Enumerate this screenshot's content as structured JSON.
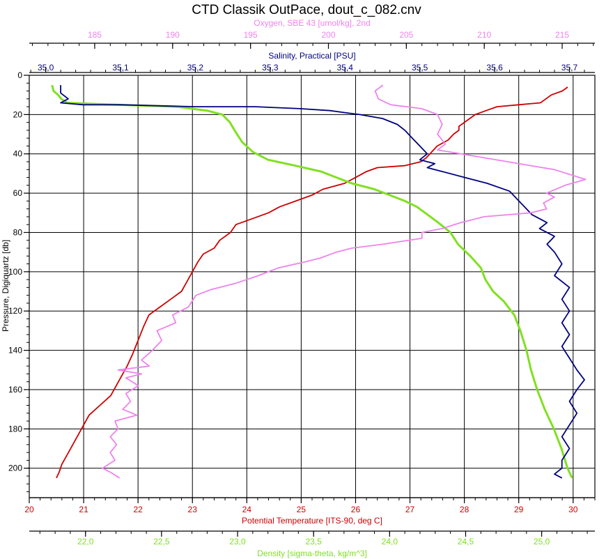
{
  "chart_data": {
    "type": "line",
    "title": "CTD Classik OutPace, dout_c_082.cnv",
    "grid": true,
    "y_axis": {
      "label": "Pressure, Digiquartz [db]",
      "range": [
        0,
        215
      ],
      "ticks": [
        "0",
        "20",
        "40",
        "60",
        "80",
        "100",
        "120",
        "140",
        "160",
        "180",
        "200"
      ],
      "inverted": true
    },
    "axes": [
      {
        "key": "oxygen",
        "label": "Oxygen, SBE 43 [umol/kg], 2nd",
        "color": "#ee82ee",
        "range": [
          180.8,
          217.1
        ],
        "ticks": [
          "185",
          "190",
          "195",
          "200",
          "205",
          "210",
          "215"
        ]
      },
      {
        "key": "salinity",
        "label": "Salinity, Practical [PSU]",
        "color": "#000080",
        "range": [
          34.978,
          35.734
        ],
        "ticks": [
          "35,0",
          "35,1",
          "35,2",
          "35,3",
          "35,4",
          "35,5",
          "35,6",
          "35,7"
        ]
      },
      {
        "key": "temperature",
        "label": "Potential Temperature [ITS-90, deg C]",
        "color": "#cc0000",
        "range": [
          20,
          30.4
        ],
        "ticks": [
          "20",
          "21",
          "22",
          "23",
          "24",
          "25",
          "26",
          "27",
          "28",
          "29",
          "30"
        ]
      },
      {
        "key": "density",
        "label": "Density [sigma-theta, kg/m^3]",
        "color": "#80e020",
        "range": [
          21.63,
          25.35
        ],
        "ticks": [
          "22,0",
          "22,5",
          "23,0",
          "23,5",
          "24,0",
          "24,5",
          "25,0"
        ]
      }
    ],
    "series": [
      {
        "axis": "temperature",
        "color": "#cc0000",
        "points": [
          [
            29.9,
            6
          ],
          [
            29.8,
            8
          ],
          [
            29.6,
            10
          ],
          [
            29.5,
            12
          ],
          [
            29.4,
            14
          ],
          [
            29.0,
            15
          ],
          [
            28.6,
            16
          ],
          [
            28.4,
            18
          ],
          [
            28.2,
            20
          ],
          [
            28.1,
            22
          ],
          [
            28.0,
            24
          ],
          [
            27.9,
            26
          ],
          [
            27.9,
            28
          ],
          [
            27.8,
            30
          ],
          [
            27.7,
            33
          ],
          [
            27.5,
            36
          ],
          [
            27.4,
            39
          ],
          [
            27.3,
            42
          ],
          [
            27.2,
            44
          ],
          [
            26.9,
            46
          ],
          [
            26.4,
            47
          ],
          [
            26.2,
            49
          ],
          [
            26.0,
            52
          ],
          [
            25.8,
            55
          ],
          [
            25.4,
            58
          ],
          [
            25.2,
            61
          ],
          [
            24.9,
            64
          ],
          [
            24.6,
            67
          ],
          [
            24.4,
            70
          ],
          [
            24.1,
            73
          ],
          [
            23.8,
            76
          ],
          [
            23.7,
            80
          ],
          [
            23.5,
            84
          ],
          [
            23.4,
            88
          ],
          [
            23.2,
            91
          ],
          [
            23.1,
            95
          ],
          [
            23.0,
            100
          ],
          [
            22.9,
            105
          ],
          [
            22.8,
            110
          ],
          [
            22.6,
            114
          ],
          [
            22.4,
            118
          ],
          [
            22.2,
            122
          ],
          [
            22.1,
            128
          ],
          [
            22.0,
            135
          ],
          [
            21.9,
            142
          ],
          [
            21.8,
            148
          ],
          [
            21.7,
            153
          ],
          [
            21.6,
            158
          ],
          [
            21.5,
            163
          ],
          [
            21.3,
            168
          ],
          [
            21.1,
            173
          ],
          [
            21.0,
            178
          ],
          [
            20.9,
            183
          ],
          [
            20.8,
            188
          ],
          [
            20.7,
            193
          ],
          [
            20.6,
            198
          ],
          [
            20.55,
            202
          ],
          [
            20.5,
            205
          ]
        ]
      },
      {
        "axis": "density",
        "color": "#80e020",
        "points": [
          [
            21.78,
            5
          ],
          [
            21.79,
            8
          ],
          [
            21.82,
            10
          ],
          [
            21.84,
            12
          ],
          [
            21.88,
            14
          ],
          [
            22.2,
            15
          ],
          [
            22.6,
            16
          ],
          [
            22.8,
            18
          ],
          [
            22.9,
            20
          ],
          [
            22.95,
            24
          ],
          [
            22.98,
            28
          ],
          [
            23.03,
            34
          ],
          [
            23.1,
            39
          ],
          [
            23.2,
            43
          ],
          [
            23.38,
            46
          ],
          [
            23.55,
            49
          ],
          [
            23.65,
            52
          ],
          [
            23.75,
            55
          ],
          [
            23.9,
            58
          ],
          [
            24.0,
            61
          ],
          [
            24.1,
            64
          ],
          [
            24.18,
            67
          ],
          [
            24.25,
            71
          ],
          [
            24.32,
            75
          ],
          [
            24.4,
            80
          ],
          [
            24.45,
            86
          ],
          [
            24.53,
            92
          ],
          [
            24.6,
            98
          ],
          [
            24.63,
            104
          ],
          [
            24.68,
            110
          ],
          [
            24.75,
            115
          ],
          [
            24.82,
            122
          ],
          [
            24.86,
            130
          ],
          [
            24.9,
            140
          ],
          [
            24.93,
            150
          ],
          [
            24.97,
            160
          ],
          [
            25.02,
            170
          ],
          [
            25.08,
            180
          ],
          [
            25.13,
            190
          ],
          [
            25.17,
            200
          ],
          [
            25.2,
            205
          ]
        ]
      },
      {
        "axis": "salinity",
        "color": "#000080",
        "points": [
          [
            35.02,
            5
          ],
          [
            35.02,
            9
          ],
          [
            35.03,
            12
          ],
          [
            35.02,
            14
          ],
          [
            35.05,
            15
          ],
          [
            35.1,
            15
          ],
          [
            35.2,
            16
          ],
          [
            35.28,
            16
          ],
          [
            35.34,
            17
          ],
          [
            35.38,
            18
          ],
          [
            35.4,
            19
          ],
          [
            35.42,
            20
          ],
          [
            35.45,
            22
          ],
          [
            35.47,
            25
          ],
          [
            35.48,
            28
          ],
          [
            35.49,
            32
          ],
          [
            35.5,
            36
          ],
          [
            35.51,
            40
          ],
          [
            35.5,
            43
          ],
          [
            35.52,
            45
          ],
          [
            35.51,
            47
          ],
          [
            35.53,
            49
          ],
          [
            35.56,
            52
          ],
          [
            35.59,
            55
          ],
          [
            35.62,
            59
          ],
          [
            35.63,
            63
          ],
          [
            35.64,
            67
          ],
          [
            35.65,
            71
          ],
          [
            35.67,
            75
          ],
          [
            35.66,
            78
          ],
          [
            35.68,
            82
          ],
          [
            35.67,
            86
          ],
          [
            35.68,
            90
          ],
          [
            35.69,
            96
          ],
          [
            35.68,
            102
          ],
          [
            35.7,
            108
          ],
          [
            35.69,
            114
          ],
          [
            35.7,
            120
          ],
          [
            35.69,
            126
          ],
          [
            35.7,
            132
          ],
          [
            35.69,
            138
          ],
          [
            35.7,
            144
          ],
          [
            35.71,
            150
          ],
          [
            35.72,
            155
          ],
          [
            35.71,
            160
          ],
          [
            35.7,
            166
          ],
          [
            35.71,
            172
          ],
          [
            35.7,
            178
          ],
          [
            35.69,
            184
          ],
          [
            35.7,
            190
          ],
          [
            35.69,
            196
          ],
          [
            35.69,
            200
          ],
          [
            35.68,
            203
          ],
          [
            35.69,
            205
          ]
        ]
      },
      {
        "axis": "oxygen",
        "color": "#ee82ee",
        "points": [
          [
            203.5,
            5
          ],
          [
            203.0,
            8
          ],
          [
            203.2,
            12
          ],
          [
            204.0,
            15
          ],
          [
            206.0,
            17
          ],
          [
            207.0,
            20
          ],
          [
            207.3,
            25
          ],
          [
            207.0,
            30
          ],
          [
            207.5,
            35
          ],
          [
            207.0,
            38
          ],
          [
            208.5,
            40
          ],
          [
            210.0,
            42
          ],
          [
            211.5,
            44
          ],
          [
            213.0,
            46
          ],
          [
            214.5,
            48
          ],
          [
            216.5,
            53
          ],
          [
            215.2,
            56
          ],
          [
            214.0,
            60
          ],
          [
            214.5,
            62
          ],
          [
            213.8,
            65
          ],
          [
            214.0,
            68
          ],
          [
            213.0,
            70
          ],
          [
            210.0,
            72
          ],
          [
            208.5,
            75
          ],
          [
            207.3,
            78
          ],
          [
            206.0,
            80
          ],
          [
            206.0,
            83
          ],
          [
            203.5,
            86
          ],
          [
            201.5,
            88
          ],
          [
            200.5,
            90
          ],
          [
            199.5,
            93
          ],
          [
            198.5,
            95
          ],
          [
            196.8,
            98
          ],
          [
            195.5,
            102
          ],
          [
            194.0,
            106
          ],
          [
            192.5,
            109
          ],
          [
            191.5,
            112
          ],
          [
            191.0,
            118
          ],
          [
            190.0,
            122
          ],
          [
            190.2,
            126
          ],
          [
            189.0,
            130
          ],
          [
            189.3,
            135
          ],
          [
            188.7,
            140
          ],
          [
            188.0,
            145
          ],
          [
            188.5,
            148
          ],
          [
            186.5,
            150
          ],
          [
            188.0,
            152
          ],
          [
            187.0,
            154
          ],
          [
            187.8,
            158
          ],
          [
            187.0,
            162
          ],
          [
            187.3,
            166
          ],
          [
            186.8,
            170
          ],
          [
            187.7,
            173
          ],
          [
            186.3,
            176
          ],
          [
            186.5,
            180
          ],
          [
            186.0,
            184
          ],
          [
            186.4,
            188
          ],
          [
            186.0,
            192
          ],
          [
            186.3,
            196
          ],
          [
            185.5,
            200
          ],
          [
            186.0,
            202
          ],
          [
            186.6,
            205
          ]
        ]
      }
    ]
  }
}
